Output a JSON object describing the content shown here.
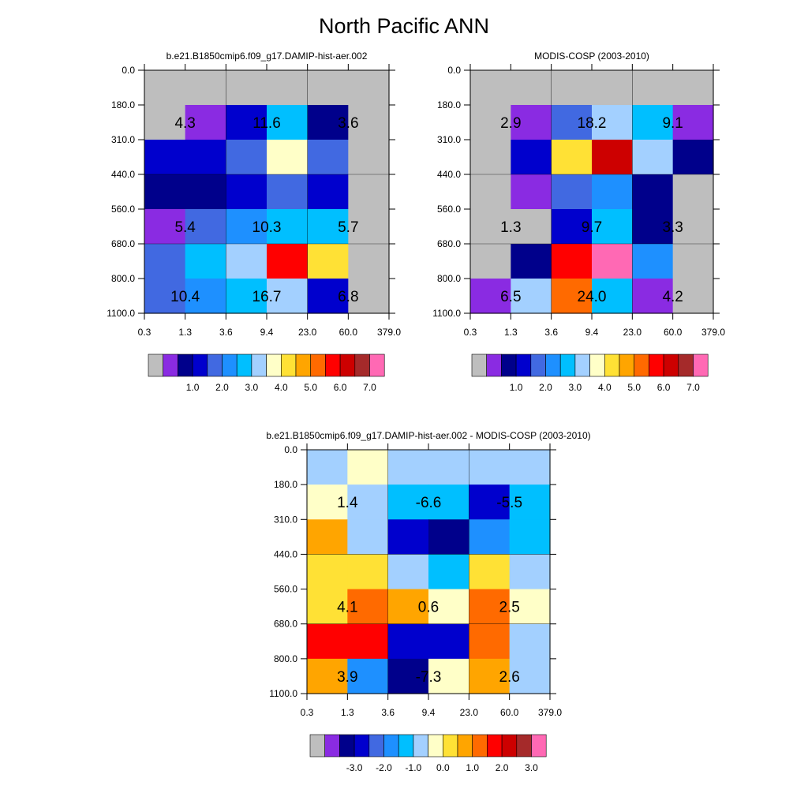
{
  "title": "North Pacific ANN",
  "colors": {
    "abs_palette": [
      "#bebebe",
      "#8a2be2",
      "#00008b",
      "#0000cd",
      "#4169e1",
      "#1e90ff",
      "#00bfff",
      "#a3d0ff",
      "#ffffc8",
      "#ffe135",
      "#ffa500",
      "#ff6a00",
      "#ff0000",
      "#cd0000",
      "#a52a2a",
      "#ff69b4"
    ],
    "diff_palette": [
      "#bebebe",
      "#8a2be2",
      "#00008b",
      "#0000cd",
      "#4169e1",
      "#1e90ff",
      "#00bfff",
      "#a3d0ff",
      "#ffffc8",
      "#ffe135",
      "#ffa500",
      "#ff6a00",
      "#ff0000",
      "#cd0000",
      "#a52a2a",
      "#ff69b4"
    ]
  },
  "chart_data": [
    {
      "type": "heatmap",
      "subtitle": "b.e21.B1850cmip6.f09_g17.DAMIP-hist-aer.002",
      "x_ticks": [
        "0.3",
        "1.3",
        "3.6",
        "9.4",
        "23.0",
        "60.0",
        "379.0"
      ],
      "y_ticks": [
        "0.0",
        "180.0",
        "310.0",
        "440.0",
        "560.0",
        "680.0",
        "800.0",
        "1100.0"
      ],
      "cell_colors": [
        [
          "#bebebe",
          "#bebebe",
          "#bebebe",
          "#bebebe",
          "#bebebe",
          "#bebebe"
        ],
        [
          "#bebebe",
          "#8a2be2",
          "#0000cd",
          "#00bfff",
          "#00008b",
          "#bebebe"
        ],
        [
          "#0000cd",
          "#0000cd",
          "#4169e1",
          "#ffffc8",
          "#4169e1",
          "#bebebe"
        ],
        [
          "#00008b",
          "#00008b",
          "#0000cd",
          "#4169e1",
          "#0000cd",
          "#bebebe"
        ],
        [
          "#8a2be2",
          "#4169e1",
          "#1e90ff",
          "#00bfff",
          "#00bfff",
          "#bebebe"
        ],
        [
          "#4169e1",
          "#00bfff",
          "#a3d0ff",
          "#ff0000",
          "#ffe135",
          "#bebebe"
        ],
        [
          "#4169e1",
          "#1e90ff",
          "#00bfff",
          "#a3d0ff",
          "#0000cd",
          "#bebebe"
        ]
      ],
      "annotations": [
        {
          "text": "4.3",
          "col": 1,
          "row": 1.5
        },
        {
          "text": "11.6",
          "col": 3,
          "row": 1.5
        },
        {
          "text": "3.6",
          "col": 5,
          "row": 1.5
        },
        {
          "text": "5.4",
          "col": 1,
          "row": 4.5
        },
        {
          "text": "10.3",
          "col": 3,
          "row": 4.5
        },
        {
          "text": "5.7",
          "col": 5,
          "row": 4.5
        },
        {
          "text": "10.4",
          "col": 1,
          "row": 6.5
        },
        {
          "text": "16.7",
          "col": 3,
          "row": 6.5
        },
        {
          "text": "6.8",
          "col": 5,
          "row": 6.5
        }
      ],
      "colorbar_labels": [
        "1.0",
        "2.0",
        "3.0",
        "4.0",
        "5.0",
        "6.0",
        "7.0"
      ]
    },
    {
      "type": "heatmap",
      "subtitle": "MODIS-COSP (2003-2010)",
      "x_ticks": [
        "0.3",
        "1.3",
        "3.6",
        "9.4",
        "23.0",
        "60.0",
        "379.0"
      ],
      "y_ticks": [
        "0.0",
        "180.0",
        "310.0",
        "440.0",
        "560.0",
        "680.0",
        "800.0",
        "1100.0"
      ],
      "cell_colors": [
        [
          "#bebebe",
          "#bebebe",
          "#bebebe",
          "#bebebe",
          "#bebebe",
          "#bebebe"
        ],
        [
          "#bebebe",
          "#8a2be2",
          "#4169e1",
          "#a3d0ff",
          "#00bfff",
          "#8a2be2"
        ],
        [
          "#bebebe",
          "#0000cd",
          "#ffe135",
          "#cd0000",
          "#a3d0ff",
          "#00008b"
        ],
        [
          "#bebebe",
          "#8a2be2",
          "#4169e1",
          "#1e90ff",
          "#00008b",
          "#bebebe"
        ],
        [
          "#bebebe",
          "#bebebe",
          "#0000cd",
          "#00bfff",
          "#00008b",
          "#bebebe"
        ],
        [
          "#bebebe",
          "#00008b",
          "#ff0000",
          "#ff69b4",
          "#1e90ff",
          "#bebebe"
        ],
        [
          "#8a2be2",
          "#a3d0ff",
          "#ff6a00",
          "#00bfff",
          "#8a2be2",
          "#bebebe"
        ]
      ],
      "annotations": [
        {
          "text": "2.9",
          "col": 1,
          "row": 1.5
        },
        {
          "text": "18.2",
          "col": 3,
          "row": 1.5
        },
        {
          "text": "9.1",
          "col": 5,
          "row": 1.5
        },
        {
          "text": "1.3",
          "col": 1,
          "row": 4.5
        },
        {
          "text": "9.7",
          "col": 3,
          "row": 4.5
        },
        {
          "text": "3.3",
          "col": 5,
          "row": 4.5
        },
        {
          "text": "6.5",
          "col": 1,
          "row": 6.5
        },
        {
          "text": "24.0",
          "col": 3,
          "row": 6.5
        },
        {
          "text": "4.2",
          "col": 5,
          "row": 6.5
        }
      ],
      "colorbar_labels": [
        "1.0",
        "2.0",
        "3.0",
        "4.0",
        "5.0",
        "6.0",
        "7.0"
      ]
    },
    {
      "type": "heatmap",
      "subtitle": "b.e21.B1850cmip6.f09_g17.DAMIP-hist-aer.002 - MODIS-COSP (2003-2010)",
      "x_ticks": [
        "0.3",
        "1.3",
        "3.6",
        "9.4",
        "23.0",
        "60.0",
        "379.0"
      ],
      "y_ticks": [
        "0.0",
        "180.0",
        "310.0",
        "440.0",
        "560.0",
        "680.0",
        "800.0",
        "1100.0"
      ],
      "cell_colors": [
        [
          "#a3d0ff",
          "#ffffc8",
          "#a3d0ff",
          "#a3d0ff",
          "#a3d0ff",
          "#a3d0ff"
        ],
        [
          "#ffffc8",
          "#a3d0ff",
          "#00bfff",
          "#00bfff",
          "#0000cd",
          "#00bfff"
        ],
        [
          "#ffa500",
          "#a3d0ff",
          "#0000cd",
          "#00008b",
          "#1e90ff",
          "#00bfff"
        ],
        [
          "#ffe135",
          "#ffe135",
          "#a3d0ff",
          "#00bfff",
          "#ffe135",
          "#a3d0ff"
        ],
        [
          "#ffe135",
          "#ff6a00",
          "#ffa500",
          "#ffffc8",
          "#ff6a00",
          "#ffffc8"
        ],
        [
          "#ff0000",
          "#ff0000",
          "#0000cd",
          "#0000cd",
          "#ff6a00",
          "#a3d0ff"
        ],
        [
          "#ffa500",
          "#1e90ff",
          "#00008b",
          "#ffffc8",
          "#ffa500",
          "#a3d0ff"
        ]
      ],
      "annotations": [
        {
          "text": "1.4",
          "col": 1,
          "row": 1.5
        },
        {
          "text": "-6.6",
          "col": 3,
          "row": 1.5
        },
        {
          "text": "-5.5",
          "col": 5,
          "row": 1.5
        },
        {
          "text": "4.1",
          "col": 1,
          "row": 4.5
        },
        {
          "text": "0.6",
          "col": 3,
          "row": 4.5
        },
        {
          "text": "2.5",
          "col": 5,
          "row": 4.5
        },
        {
          "text": "3.9",
          "col": 1,
          "row": 6.5
        },
        {
          "text": "-7.3",
          "col": 3,
          "row": 6.5
        },
        {
          "text": "2.6",
          "col": 5,
          "row": 6.5
        }
      ],
      "colorbar_labels": [
        "-3.0",
        "-2.0",
        "-1.0",
        "0.0",
        "1.0",
        "2.0",
        "3.0"
      ]
    }
  ]
}
